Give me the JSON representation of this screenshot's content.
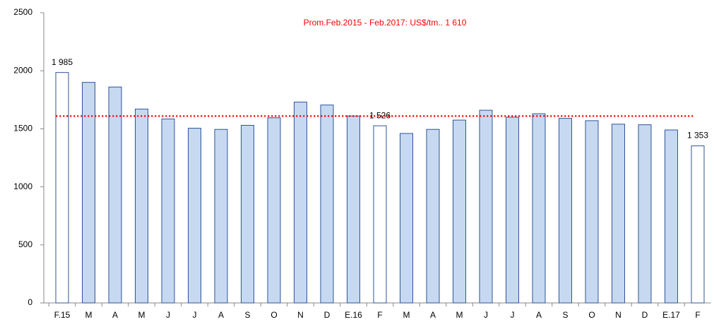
{
  "chart_data": {
    "type": "bar",
    "annotation": "Prom.Feb.2015 - Feb.2017: US$/tm.. 1 610",
    "average": 1610,
    "average_color": "#ff0000",
    "categories": [
      "F.15",
      "M",
      "A",
      "M",
      "J",
      "J",
      "A",
      "S",
      "O",
      "N",
      "D",
      "E.16",
      "F",
      "M",
      "A",
      "M",
      "J",
      "J",
      "A",
      "S",
      "O",
      "N",
      "D",
      "E.17",
      "F"
    ],
    "values": [
      1985,
      1900,
      1860,
      1670,
      1585,
      1505,
      1495,
      1530,
      1595,
      1730,
      1705,
      1610,
      1526,
      1460,
      1495,
      1575,
      1660,
      1600,
      1630,
      1590,
      1570,
      1540,
      1535,
      1490,
      1353
    ],
    "value_labels": [
      "1 985",
      null,
      null,
      null,
      null,
      null,
      null,
      null,
      null,
      null,
      null,
      null,
      "1 526",
      null,
      null,
      null,
      null,
      null,
      null,
      null,
      null,
      null,
      null,
      null,
      "1 353"
    ],
    "colors": [
      "#ffffff",
      "#c6d9f1",
      "#c6d9f1",
      "#c6d9f1",
      "#c6d9f1",
      "#c6d9f1",
      "#c6d9f1",
      "#c6d9f1",
      "#c6d9f1",
      "#c6d9f1",
      "#c6d9f1",
      "#c6d9f1",
      "#ffffff",
      "#c6d9f1",
      "#c6d9f1",
      "#c6d9f1",
      "#c6d9f1",
      "#c6d9f1",
      "#c6d9f1",
      "#c6d9f1",
      "#c6d9f1",
      "#c6d9f1",
      "#c6d9f1",
      "#c6d9f1",
      "#ffffff"
    ],
    "border_color": "#2f5597",
    "ylim": [
      0,
      2500
    ],
    "yticks": [
      0,
      500,
      1000,
      1500,
      2000,
      2500
    ]
  }
}
